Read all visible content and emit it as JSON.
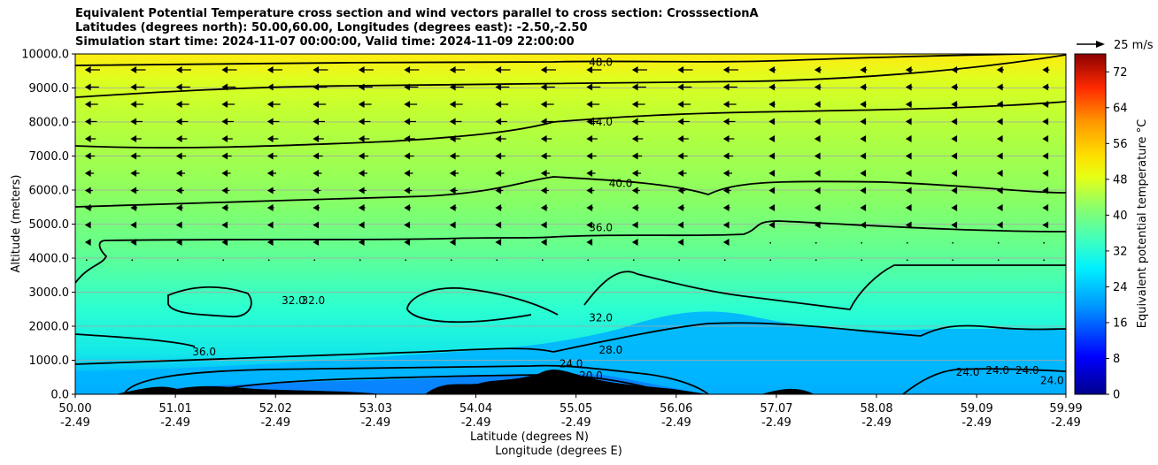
{
  "chart_data": {
    "type": "heatmap",
    "title_lines": [
      "Equivalent Potential Temperature cross section and wind vectors parallel to cross section: CrosssectionA",
      "Latitudes (degrees north): 50.00,60.00, Longitudes (degrees east): -2.50,-2.50",
      "Simulation start time: 2024-11-07 00:00:00, Valid time: 2024-11-09 22:00:00"
    ],
    "ylabel": "Altitude (meters)",
    "xlabel_1": "Latitude (degrees N)",
    "xlabel_2": "Longitude (degrees E)",
    "ylim": [
      0,
      10000
    ],
    "yticks": [
      "0.0",
      "1000.0",
      "2000.0",
      "3000.0",
      "4000.0",
      "5000.0",
      "6000.0",
      "7000.0",
      "8000.0",
      "9000.0",
      "10000.0"
    ],
    "xticks_lat": [
      "50.00",
      "51.01",
      "52.02",
      "53.03",
      "54.04",
      "55.05",
      "56.06",
      "57.07",
      "58.08",
      "59.09",
      "59.99"
    ],
    "xticks_lon": [
      "-2.49",
      "-2.49",
      "-2.49",
      "-2.49",
      "-2.49",
      "-2.49",
      "-2.49",
      "-2.49",
      "-2.49",
      "-2.49",
      "-2.49"
    ],
    "colorbar": {
      "label": "Equivalent potential temperature °C",
      "range": [
        0,
        76
      ],
      "ticks": [
        "0",
        "8",
        "16",
        "24",
        "32",
        "40",
        "48",
        "56",
        "64",
        "72"
      ]
    },
    "quiver_key": "25 m/s",
    "contour_levels": [
      20,
      24,
      28,
      32,
      36,
      40,
      44,
      48
    ],
    "contour_labels": [
      {
        "text": "48.0",
        "lat": 55.3,
        "alt": 9750
      },
      {
        "text": "44.0",
        "lat": 55.3,
        "alt": 8000
      },
      {
        "text": "40.0",
        "lat": 55.5,
        "alt": 6200
      },
      {
        "text": "36.0",
        "lat": 55.3,
        "alt": 4900
      },
      {
        "text": "32.0",
        "lat": 52.2,
        "alt": 2750
      },
      {
        "text": "32.0",
        "lat": 52.4,
        "alt": 2750
      },
      {
        "text": "36.0",
        "lat": 51.3,
        "alt": 1250
      },
      {
        "text": "32.0",
        "lat": 55.3,
        "alt": 2250
      },
      {
        "text": "28.0",
        "lat": 55.4,
        "alt": 1300
      },
      {
        "text": "24.0",
        "lat": 55.0,
        "alt": 900
      },
      {
        "text": "20.0",
        "lat": 55.2,
        "alt": 550
      },
      {
        "text": "24.0",
        "lat": 59.0,
        "alt": 650
      },
      {
        "text": "24.0",
        "lat": 59.3,
        "alt": 700
      },
      {
        "text": "24.0",
        "lat": 59.6,
        "alt": 700
      },
      {
        "text": "24.0",
        "lat": 59.85,
        "alt": 400
      }
    ]
  }
}
